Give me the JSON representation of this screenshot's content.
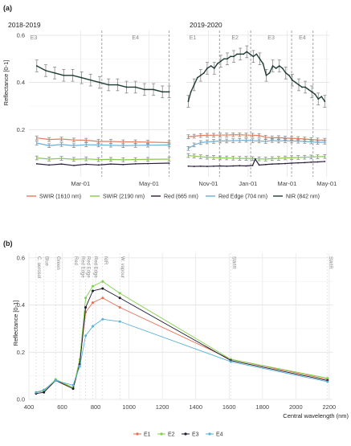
{
  "panel_a": {
    "panel_label": "(a)",
    "ylabel": "Reflectance [0-1]",
    "facet1_title": "2018-2019",
    "facet2_title": "2019-2020",
    "yticks": [
      "0.2",
      "0.4",
      "0.6"
    ],
    "facet1_xticks": [
      "Mar-01",
      "May-01"
    ],
    "facet2_xticks": [
      "Nov-01",
      "Jan-01",
      "Mar-01",
      "May-01"
    ],
    "facet1_epochs": [
      "E3",
      "E4"
    ],
    "facet2_epochs": [
      "E1",
      "E2",
      "E3",
      "E4"
    ],
    "legend": [
      "SWIR (1610 nm)",
      "SWIR (2190 nm)",
      "Red (665 nm)",
      "Red Edge (704 nm)",
      "NIR (842 nm)"
    ]
  },
  "panel_b": {
    "panel_label": "(b)",
    "ylabel": "Reflectance [0-1]",
    "xlabel": "Central wavelength (nm)",
    "yticks": [
      "0.0",
      "0.2",
      "0.4",
      "0.6"
    ],
    "xticks": [
      "400",
      "600",
      "800",
      "1000",
      "1200",
      "1400",
      "1600",
      "1800",
      "2000",
      "2200"
    ],
    "band_labels": [
      "C. aerosol",
      "Blue",
      "Green",
      "Red",
      "Red Edge",
      "Red Edge",
      "Red Edge",
      "NIR",
      "W. vapour",
      "SWIR",
      "SWIR"
    ],
    "legend": [
      "E1",
      "E2",
      "E3",
      "E4"
    ]
  },
  "colors": {
    "swir1610": "#e07b5f",
    "swir2190": "#8cc84b",
    "red665": "#2b1b3a",
    "rededge704": "#6aaed6",
    "nir842": "#1f3b35",
    "E1": "#e76f51",
    "E2": "#7fcf4a",
    "E3": "#1a1a2e",
    "E4": "#5ab0d8"
  },
  "chart_data": [
    {
      "type": "line",
      "title": "2018-2019",
      "ylabel": "Reflectance [0-1]",
      "x_type": "date",
      "ylim": [
        0,
        0.62
      ],
      "xlim": [
        "2019-01-14",
        "2019-05-20"
      ],
      "epoch_boundaries": [
        "2019-03-20",
        "2019-05-19"
      ],
      "epochs": [
        "E3",
        "E4"
      ],
      "series": [
        {
          "name": "NIR (842 nm)",
          "x": [
            "2019-01-21",
            "2019-01-29",
            "2019-02-06",
            "2019-02-14",
            "2019-02-22",
            "2019-03-02",
            "2019-03-10",
            "2019-03-18",
            "2019-03-26",
            "2019-04-03",
            "2019-04-11",
            "2019-04-19",
            "2019-04-27",
            "2019-05-05",
            "2019-05-13",
            "2019-05-19"
          ],
          "y": [
            0.47,
            0.45,
            0.44,
            0.43,
            0.43,
            0.42,
            0.41,
            0.4,
            0.39,
            0.39,
            0.38,
            0.38,
            0.37,
            0.37,
            0.36,
            0.36
          ]
        },
        {
          "name": "SWIR (1610 nm)",
          "x": [
            "2019-01-21",
            "2019-02-01",
            "2019-02-12",
            "2019-02-23",
            "2019-03-06",
            "2019-03-17",
            "2019-03-28",
            "2019-04-08",
            "2019-04-19",
            "2019-04-30",
            "2019-05-19"
          ],
          "y": [
            0.165,
            0.158,
            0.16,
            0.156,
            0.155,
            0.15,
            0.15,
            0.148,
            0.148,
            0.147,
            0.145
          ]
        },
        {
          "name": "Red Edge (704 nm)",
          "x": [
            "2019-01-21",
            "2019-02-01",
            "2019-02-12",
            "2019-02-23",
            "2019-03-06",
            "2019-03-17",
            "2019-03-28",
            "2019-04-08",
            "2019-04-19",
            "2019-04-30",
            "2019-05-19"
          ],
          "y": [
            0.143,
            0.132,
            0.137,
            0.132,
            0.136,
            0.135,
            0.134,
            0.132,
            0.133,
            0.134,
            0.135
          ]
        },
        {
          "name": "SWIR (2190 nm)",
          "x": [
            "2019-01-21",
            "2019-02-01",
            "2019-02-12",
            "2019-02-23",
            "2019-03-06",
            "2019-03-17",
            "2019-03-28",
            "2019-04-08",
            "2019-04-19",
            "2019-04-30",
            "2019-05-19"
          ],
          "y": [
            0.08,
            0.075,
            0.078,
            0.074,
            0.076,
            0.073,
            0.074,
            0.072,
            0.073,
            0.074,
            0.075
          ]
        },
        {
          "name": "Red (665 nm)",
          "x": [
            "2019-01-21",
            "2019-02-01",
            "2019-02-12",
            "2019-02-23",
            "2019-03-06",
            "2019-03-17",
            "2019-03-28",
            "2019-04-08",
            "2019-04-19",
            "2019-04-30",
            "2019-05-19"
          ],
          "y": [
            0.055,
            0.05,
            0.054,
            0.048,
            0.053,
            0.05,
            0.054,
            0.052,
            0.055,
            0.056,
            0.058
          ]
        }
      ]
    },
    {
      "type": "line",
      "title": "2019-2020",
      "ylabel": "Reflectance [0-1]",
      "x_type": "date",
      "ylim": [
        0,
        0.62
      ],
      "xlim": [
        "2019-09-28",
        "2020-05-05"
      ],
      "epoch_boundaries": [
        "2019-11-18",
        "2020-01-05",
        "2020-03-08",
        "2020-04-10"
      ],
      "epochs": [
        "E1",
        "E2",
        "E3",
        "E4"
      ],
      "series": [
        {
          "name": "NIR (842 nm)",
          "x": [
            "2019-10-01",
            "2019-10-05",
            "2019-10-10",
            "2019-10-15",
            "2019-10-20",
            "2019-10-25",
            "2019-10-30",
            "2019-11-05",
            "2019-11-10",
            "2019-11-15",
            "2019-11-20",
            "2019-11-25",
            "2019-11-30",
            "2019-12-05",
            "2019-12-10",
            "2019-12-15",
            "2019-12-20",
            "2019-12-25",
            "2019-12-30",
            "2020-01-04",
            "2020-01-09",
            "2020-01-14",
            "2020-01-19",
            "2020-01-24",
            "2020-01-29",
            "2020-02-03",
            "2020-02-08",
            "2020-02-13",
            "2020-02-18",
            "2020-02-23",
            "2020-02-28",
            "2020-03-04",
            "2020-03-09",
            "2020-03-14",
            "2020-03-19",
            "2020-03-24",
            "2020-03-29",
            "2020-04-03",
            "2020-04-08",
            "2020-04-13",
            "2020-04-18",
            "2020-04-23",
            "2020-04-28"
          ],
          "y": [
            0.32,
            0.36,
            0.39,
            0.42,
            0.43,
            0.44,
            0.46,
            0.47,
            0.46,
            0.48,
            0.49,
            0.5,
            0.5,
            0.51,
            0.51,
            0.52,
            0.52,
            0.52,
            0.53,
            0.52,
            0.51,
            0.52,
            0.5,
            0.48,
            0.43,
            0.44,
            0.47,
            0.46,
            0.47,
            0.46,
            0.44,
            0.43,
            0.41,
            0.4,
            0.39,
            0.38,
            0.38,
            0.37,
            0.36,
            0.35,
            0.33,
            0.34,
            0.32
          ]
        },
        {
          "name": "SWIR (1610 nm)",
          "x": [
            "2019-10-01",
            "2019-10-10",
            "2019-10-20",
            "2019-10-30",
            "2019-11-09",
            "2019-11-19",
            "2019-11-29",
            "2019-12-09",
            "2019-12-19",
            "2019-12-29",
            "2020-01-08",
            "2020-01-18",
            "2020-01-28",
            "2020-02-07",
            "2020-02-17",
            "2020-02-27",
            "2020-03-08",
            "2020-03-18",
            "2020-03-28",
            "2020-04-07",
            "2020-04-17",
            "2020-04-28"
          ],
          "y": [
            0.17,
            0.172,
            0.175,
            0.176,
            0.176,
            0.177,
            0.177,
            0.178,
            0.178,
            0.177,
            0.176,
            0.175,
            0.168,
            0.165,
            0.166,
            0.164,
            0.163,
            0.162,
            0.16,
            0.158,
            0.156,
            0.155
          ]
        },
        {
          "name": "Red Edge (704 nm)",
          "x": [
            "2019-10-01",
            "2019-10-10",
            "2019-10-20",
            "2019-10-30",
            "2019-11-09",
            "2019-11-19",
            "2019-11-29",
            "2019-12-09",
            "2019-12-19",
            "2019-12-29",
            "2020-01-08",
            "2020-01-18",
            "2020-01-28",
            "2020-02-07",
            "2020-02-17",
            "2020-02-27",
            "2020-03-08",
            "2020-03-18",
            "2020-03-28",
            "2020-04-07",
            "2020-04-17",
            "2020-04-28"
          ],
          "y": [
            0.12,
            0.135,
            0.145,
            0.148,
            0.15,
            0.152,
            0.152,
            0.153,
            0.154,
            0.155,
            0.153,
            0.152,
            0.15,
            0.154,
            0.152,
            0.153,
            0.152,
            0.151,
            0.15,
            0.148,
            0.146,
            0.147
          ]
        },
        {
          "name": "SWIR (2190 nm)",
          "x": [
            "2019-10-01",
            "2019-10-10",
            "2019-10-20",
            "2019-10-30",
            "2019-11-09",
            "2019-11-19",
            "2019-11-29",
            "2019-12-09",
            "2019-12-19",
            "2019-12-29",
            "2020-01-08",
            "2020-01-18",
            "2020-01-28",
            "2020-02-07",
            "2020-02-17",
            "2020-02-27",
            "2020-03-08",
            "2020-03-18",
            "2020-03-28",
            "2020-04-07",
            "2020-04-17",
            "2020-04-28"
          ],
          "y": [
            0.09,
            0.088,
            0.085,
            0.083,
            0.082,
            0.08,
            0.08,
            0.079,
            0.078,
            0.078,
            0.077,
            0.076,
            0.075,
            0.077,
            0.078,
            0.08,
            0.081,
            0.082,
            0.083,
            0.084,
            0.085,
            0.086
          ]
        },
        {
          "name": "Red (665 nm)",
          "x": [
            "2019-10-01",
            "2019-10-10",
            "2019-10-20",
            "2019-10-30",
            "2019-11-09",
            "2019-11-19",
            "2019-11-29",
            "2019-12-09",
            "2019-12-19",
            "2019-12-29",
            "2020-01-08",
            "2020-01-12",
            "2020-01-18",
            "2020-01-28",
            "2020-02-07",
            "2020-02-17",
            "2020-02-27",
            "2020-03-08",
            "2020-03-18",
            "2020-03-28",
            "2020-04-07",
            "2020-04-17",
            "2020-04-28"
          ],
          "y": [
            0.045,
            0.044,
            0.045,
            0.044,
            0.045,
            0.046,
            0.045,
            0.046,
            0.047,
            0.046,
            0.048,
            0.075,
            0.05,
            0.052,
            0.054,
            0.055,
            0.056,
            0.058,
            0.059,
            0.06,
            0.062,
            0.063,
            0.065
          ]
        }
      ]
    },
    {
      "type": "line",
      "xlabel": "Central wavelength (nm)",
      "ylabel": "Reflectance [0-1]",
      "xlim": [
        400,
        2220
      ],
      "ylim": [
        0,
        0.62
      ],
      "x": [
        443,
        490,
        560,
        665,
        705,
        740,
        783,
        842,
        945,
        1610,
        2190
      ],
      "series": [
        {
          "name": "E1",
          "values": [
            0.03,
            0.04,
            0.08,
            0.05,
            0.16,
            0.37,
            0.41,
            0.43,
            0.39,
            0.17,
            0.085
          ]
        },
        {
          "name": "E2",
          "values": [
            0.03,
            0.035,
            0.085,
            0.05,
            0.17,
            0.43,
            0.48,
            0.5,
            0.45,
            0.17,
            0.09
          ]
        },
        {
          "name": "E3",
          "values": [
            0.025,
            0.03,
            0.08,
            0.045,
            0.15,
            0.39,
            0.46,
            0.47,
            0.43,
            0.165,
            0.08
          ]
        },
        {
          "name": "E4",
          "values": [
            0.03,
            0.04,
            0.08,
            0.06,
            0.14,
            0.27,
            0.31,
            0.34,
            0.33,
            0.16,
            0.075
          ]
        }
      ]
    }
  ]
}
